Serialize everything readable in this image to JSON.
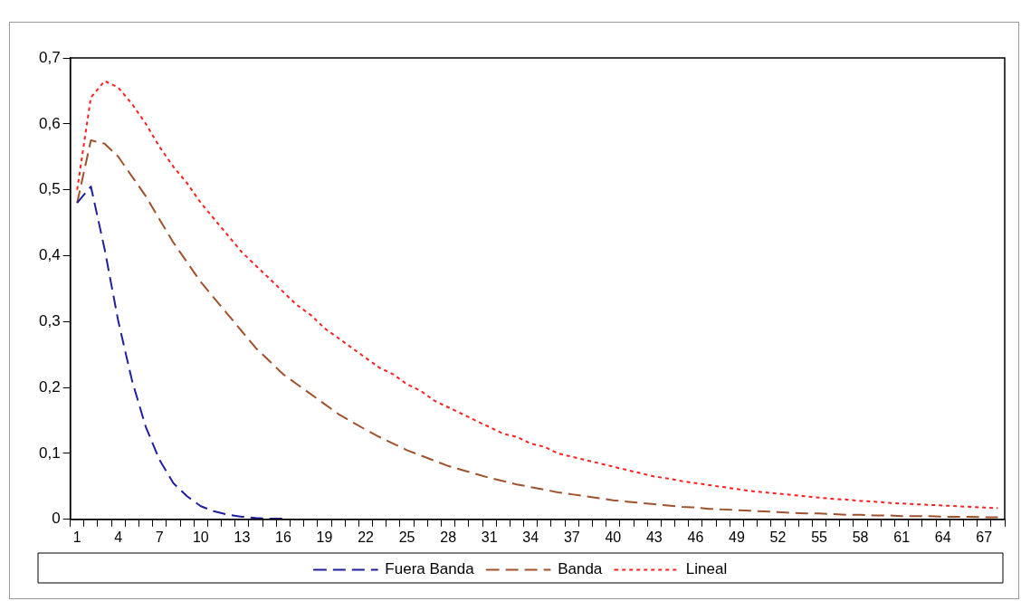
{
  "chart_data": {
    "type": "line",
    "categories": [
      "1",
      null,
      null,
      "4",
      null,
      null,
      "7",
      null,
      null,
      "10",
      null,
      null,
      "13",
      null,
      null,
      "16",
      null,
      null,
      "19",
      null,
      null,
      "22",
      null,
      null,
      "25",
      null,
      null,
      "28",
      null,
      null,
      "31",
      null,
      null,
      "34",
      null,
      null,
      "37",
      null,
      null,
      "40",
      null,
      null,
      "43",
      null,
      null,
      "46",
      null,
      null,
      "49",
      null,
      null,
      "52",
      null,
      null,
      "55",
      null,
      null,
      "58",
      null,
      null,
      "61",
      null,
      null,
      "64",
      null,
      null,
      "67",
      null
    ],
    "series": [
      {
        "name": "Fuera Banda",
        "color": "#1f1fa0",
        "line_style": "dashed",
        "values": [
          0.48,
          0.505,
          0.41,
          0.3,
          0.21,
          0.14,
          0.09,
          0.055,
          0.035,
          0.02,
          0.012,
          0.007,
          0.004,
          0.002,
          0.001,
          0.001,
          null,
          null,
          null,
          null,
          null,
          null,
          null,
          null,
          null,
          null,
          null,
          null,
          null,
          null,
          null,
          null,
          null,
          null,
          null,
          null,
          null,
          null,
          null,
          null,
          null,
          null,
          null,
          null,
          null,
          null,
          null,
          null,
          null,
          null,
          null,
          null,
          null,
          null,
          null,
          null,
          null,
          null,
          null,
          null,
          null,
          null,
          null,
          null,
          null,
          null,
          null,
          null
        ]
      },
      {
        "name": "Banda",
        "color": "#a0522d",
        "line_style": "dashed",
        "values": [
          0.48,
          0.575,
          0.57,
          0.55,
          0.52,
          0.49,
          0.455,
          0.42,
          0.39,
          0.36,
          0.335,
          0.31,
          0.285,
          0.26,
          0.24,
          0.22,
          0.205,
          0.19,
          0.175,
          0.16,
          0.148,
          0.136,
          0.125,
          0.115,
          0.105,
          0.097,
          0.089,
          0.081,
          0.075,
          0.069,
          0.063,
          0.058,
          0.053,
          0.049,
          0.045,
          0.041,
          0.038,
          0.035,
          0.032,
          0.029,
          0.027,
          0.025,
          0.023,
          0.021,
          0.019,
          0.018,
          0.016,
          0.015,
          0.014,
          0.013,
          0.012,
          0.011,
          0.01,
          0.009,
          0.009,
          0.008,
          0.007,
          0.007,
          0.006,
          0.006,
          0.005,
          0.005,
          0.005,
          0.004,
          0.004,
          0.004,
          0.003,
          0.003
        ]
      },
      {
        "name": "Lineal",
        "color": "#ff2020",
        "line_style": "dotted",
        "values": [
          0.5,
          0.64,
          0.665,
          0.655,
          0.63,
          0.6,
          0.565,
          0.535,
          0.51,
          0.48,
          0.455,
          0.43,
          0.405,
          0.385,
          0.365,
          0.345,
          0.325,
          0.31,
          0.29,
          0.275,
          0.26,
          0.245,
          0.23,
          0.22,
          0.205,
          0.195,
          0.18,
          0.17,
          0.16,
          0.15,
          0.14,
          0.13,
          0.125,
          0.115,
          0.11,
          0.1,
          0.095,
          0.09,
          0.085,
          0.08,
          0.075,
          0.07,
          0.065,
          0.062,
          0.058,
          0.055,
          0.052,
          0.049,
          0.046,
          0.043,
          0.041,
          0.039,
          0.037,
          0.035,
          0.033,
          0.031,
          0.03,
          0.028,
          0.027,
          0.025,
          0.024,
          0.023,
          0.022,
          0.021,
          0.02,
          0.019,
          0.018,
          0.017
        ]
      }
    ],
    "ylim": [
      0,
      0.7
    ],
    "yticks": [
      0,
      {
        "value": 0.1,
        "label": "0,1"
      },
      {
        "value": 0.2,
        "label": "0,2"
      },
      {
        "value": 0.3,
        "label": "0,3"
      },
      {
        "value": 0.4,
        "label": "0,4"
      },
      {
        "value": 0.5,
        "label": "0,5"
      },
      {
        "value": 0.6,
        "label": "0,6"
      },
      {
        "value": 0.7,
        "label": "0,7"
      }
    ],
    "grid": false,
    "legend": "bottom",
    "marker": "none"
  }
}
